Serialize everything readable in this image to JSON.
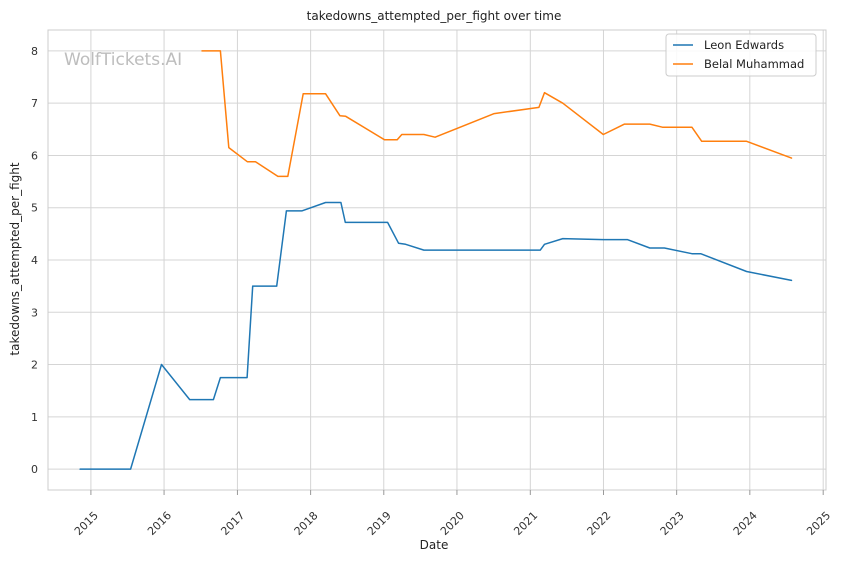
{
  "chart_data": {
    "type": "line",
    "title": "takedowns_attempted_per_fight over time",
    "xlabel": "Date",
    "ylabel": "takedowns_attempted_per_fight",
    "watermark": "WolfTickets.AI",
    "xlim": [
      "2014-06-01",
      "2025-01-15"
    ],
    "ylim": [
      -0.4,
      8.4
    ],
    "x_ticks": [
      "2015",
      "2016",
      "2017",
      "2018",
      "2019",
      "2020",
      "2021",
      "2022",
      "2023",
      "2024",
      "2025"
    ],
    "y_ticks": [
      0,
      1,
      2,
      3,
      4,
      5,
      6,
      7,
      8
    ],
    "grid": true,
    "legend_position": "top-right",
    "series": [
      {
        "name": "Leon Edwards",
        "color": "#1f77b4",
        "points": [
          {
            "x": "2014-11-08",
            "y": 0
          },
          {
            "x": "2015-07-18",
            "y": 0
          },
          {
            "x": "2015-12-19",
            "y": 2.0
          },
          {
            "x": "2016-05-08",
            "y": 1.33
          },
          {
            "x": "2016-09-03",
            "y": 1.33
          },
          {
            "x": "2016-10-08",
            "y": 1.75
          },
          {
            "x": "2017-02-18",
            "y": 1.75
          },
          {
            "x": "2017-03-18",
            "y": 3.5
          },
          {
            "x": "2017-07-16",
            "y": 3.5
          },
          {
            "x": "2017-09-02",
            "y": 4.94
          },
          {
            "x": "2017-11-18",
            "y": 4.94
          },
          {
            "x": "2018-03-17",
            "y": 5.1
          },
          {
            "x": "2018-06-01",
            "y": 5.1
          },
          {
            "x": "2018-06-23",
            "y": 4.72
          },
          {
            "x": "2019-01-20",
            "y": 4.72
          },
          {
            "x": "2019-03-16",
            "y": 4.32
          },
          {
            "x": "2019-04-20",
            "y": 4.3
          },
          {
            "x": "2019-07-20",
            "y": 4.19
          },
          {
            "x": "2020-06-01",
            "y": 4.19
          },
          {
            "x": "2021-02-20",
            "y": 4.19
          },
          {
            "x": "2021-03-13",
            "y": 4.3
          },
          {
            "x": "2021-06-12",
            "y": 4.41
          },
          {
            "x": "2021-12-31",
            "y": 4.39
          },
          {
            "x": "2022-04-30",
            "y": 4.39
          },
          {
            "x": "2022-08-20",
            "y": 4.23
          },
          {
            "x": "2022-11-01",
            "y": 4.23
          },
          {
            "x": "2023-03-18",
            "y": 4.12
          },
          {
            "x": "2023-05-01",
            "y": 4.12
          },
          {
            "x": "2023-12-16",
            "y": 3.78
          },
          {
            "x": "2024-07-27",
            "y": 3.61
          }
        ]
      },
      {
        "name": "Belal Muhammad",
        "color": "#ff7f0e",
        "points": [
          {
            "x": "2016-07-08",
            "y": 8.0
          },
          {
            "x": "2016-10-08",
            "y": 8.0
          },
          {
            "x": "2016-11-19",
            "y": 6.15
          },
          {
            "x": "2017-02-19",
            "y": 5.88
          },
          {
            "x": "2017-04-01",
            "y": 5.88
          },
          {
            "x": "2017-07-22",
            "y": 5.6
          },
          {
            "x": "2017-09-09",
            "y": 5.6
          },
          {
            "x": "2017-11-25",
            "y": 7.18
          },
          {
            "x": "2018-03-17",
            "y": 7.18
          },
          {
            "x": "2018-05-27",
            "y": 6.76
          },
          {
            "x": "2018-06-25",
            "y": 6.75
          },
          {
            "x": "2019-01-05",
            "y": 6.3
          },
          {
            "x": "2019-03-09",
            "y": 6.3
          },
          {
            "x": "2019-04-01",
            "y": 6.4
          },
          {
            "x": "2019-07-20",
            "y": 6.4
          },
          {
            "x": "2019-09-14",
            "y": 6.35
          },
          {
            "x": "2020-07-05",
            "y": 6.8
          },
          {
            "x": "2021-02-13",
            "y": 6.92
          },
          {
            "x": "2021-03-13",
            "y": 7.2
          },
          {
            "x": "2021-06-12",
            "y": 7.0
          },
          {
            "x": "2021-12-31",
            "y": 6.4
          },
          {
            "x": "2022-04-16",
            "y": 6.6
          },
          {
            "x": "2022-08-20",
            "y": 6.6
          },
          {
            "x": "2022-10-22",
            "y": 6.54
          },
          {
            "x": "2023-03-18",
            "y": 6.54
          },
          {
            "x": "2023-05-06",
            "y": 6.27
          },
          {
            "x": "2023-12-16",
            "y": 6.27
          },
          {
            "x": "2024-07-27",
            "y": 5.95
          }
        ]
      }
    ]
  }
}
